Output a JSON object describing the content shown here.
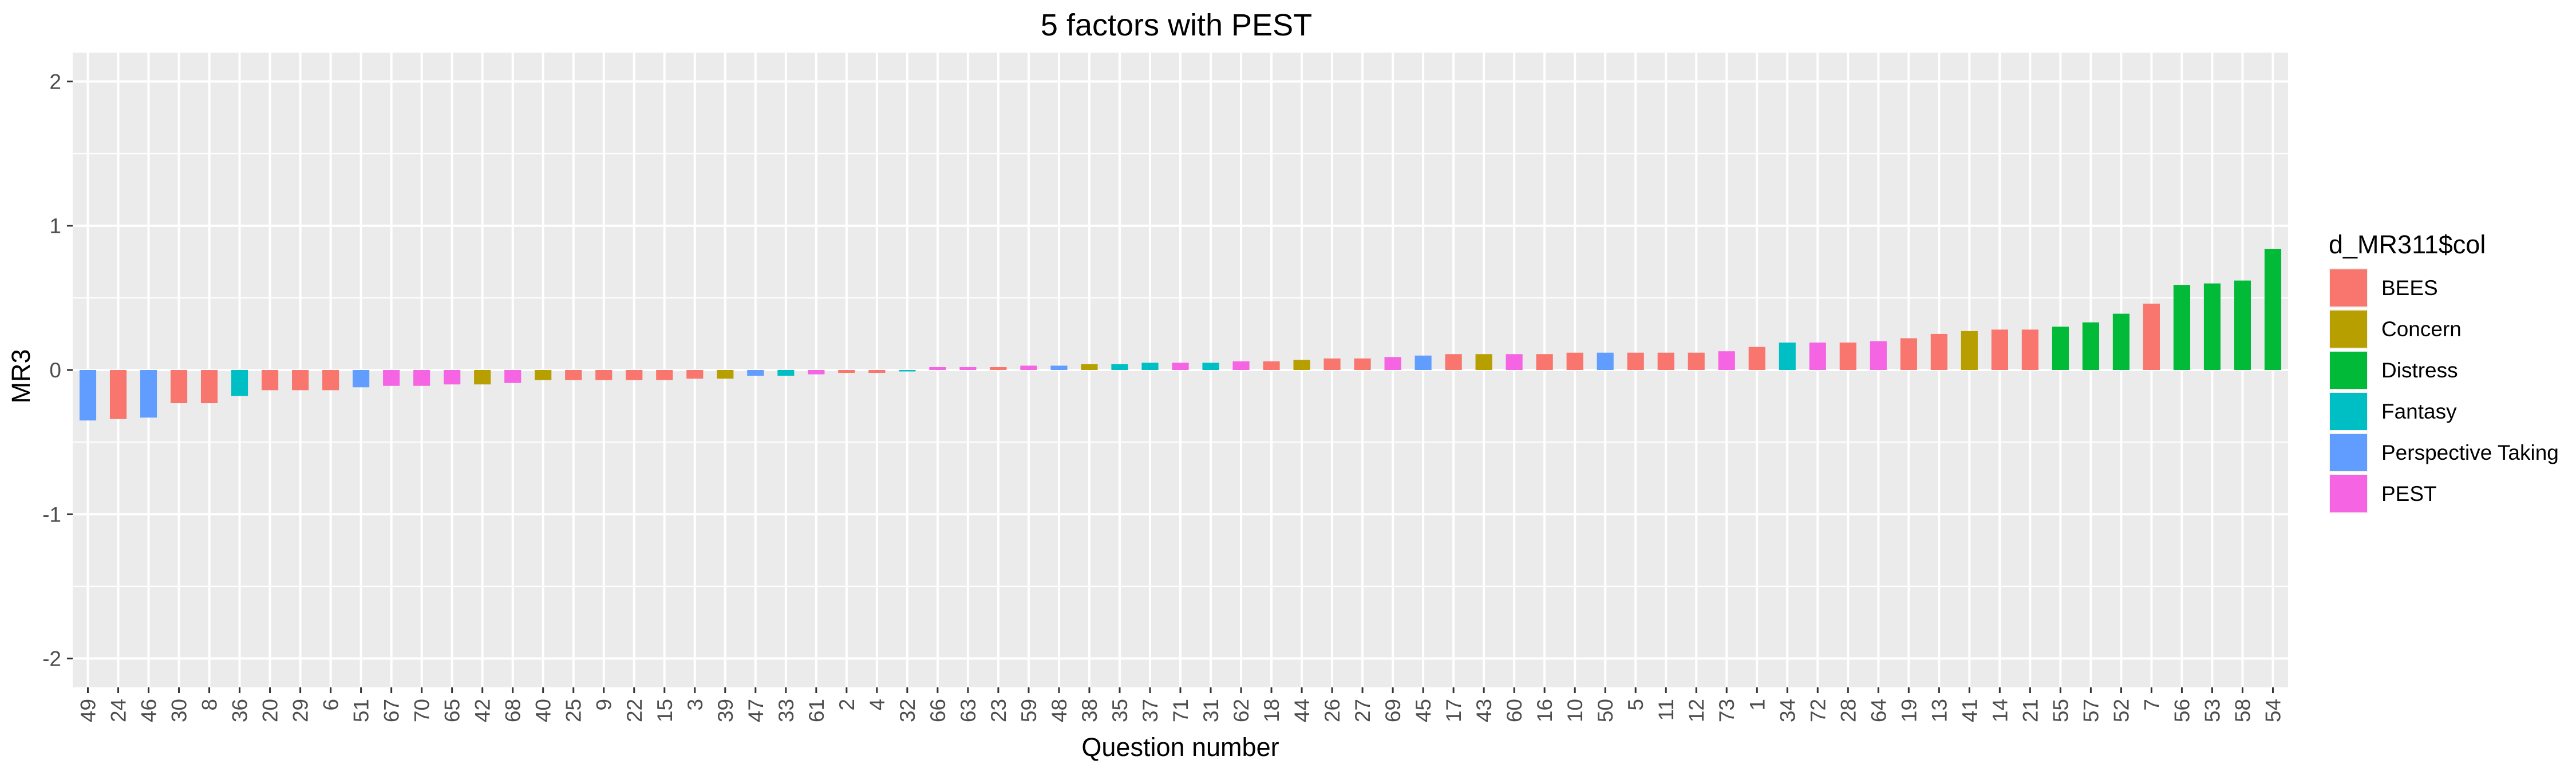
{
  "chart_data": {
    "type": "bar",
    "title": "5 factors with PEST",
    "xlabel": "Question number",
    "ylabel": "MR3",
    "ylim": [
      -2.2,
      2.2
    ],
    "yticks": [
      -2,
      -1,
      0,
      1,
      2
    ],
    "grid": true,
    "legend": {
      "title": "d_MR311$col",
      "position": "right",
      "entries": [
        {
          "name": "BEES",
          "color": "#F8766D"
        },
        {
          "name": "Concern",
          "color": "#B79F00"
        },
        {
          "name": "Distress",
          "color": "#00BA38"
        },
        {
          "name": "Fantasy",
          "color": "#00BFC4"
        },
        {
          "name": "Perspective Taking",
          "color": "#619CFF"
        },
        {
          "name": "PEST",
          "color": "#F564E3"
        }
      ]
    },
    "categories": [
      "49",
      "24",
      "46",
      "30",
      "8",
      "36",
      "20",
      "29",
      "6",
      "51",
      "67",
      "70",
      "65",
      "42",
      "68",
      "40",
      "25",
      "9",
      "22",
      "15",
      "3",
      "39",
      "47",
      "33",
      "61",
      "2",
      "4",
      "32",
      "66",
      "63",
      "23",
      "59",
      "48",
      "38",
      "35",
      "37",
      "71",
      "31",
      "62",
      "18",
      "44",
      "26",
      "27",
      "69",
      "45",
      "17",
      "43",
      "60",
      "16",
      "10",
      "50",
      "5",
      "11",
      "12",
      "73",
      "1",
      "34",
      "72",
      "28",
      "64",
      "19",
      "13",
      "41",
      "14",
      "21",
      "55",
      "57",
      "52",
      "7",
      "56",
      "53",
      "58",
      "54"
    ],
    "values": [
      -0.35,
      -0.34,
      -0.33,
      -0.23,
      -0.23,
      -0.18,
      -0.14,
      -0.14,
      -0.14,
      -0.12,
      -0.11,
      -0.11,
      -0.1,
      -0.1,
      -0.09,
      -0.07,
      -0.07,
      -0.07,
      -0.07,
      -0.07,
      -0.06,
      -0.06,
      -0.04,
      -0.04,
      -0.03,
      -0.02,
      -0.02,
      -0.01,
      0.02,
      0.02,
      0.02,
      0.03,
      0.03,
      0.04,
      0.04,
      0.05,
      0.05,
      0.05,
      0.06,
      0.06,
      0.07,
      0.08,
      0.08,
      0.09,
      0.1,
      0.11,
      0.11,
      0.11,
      0.11,
      0.12,
      0.12,
      0.12,
      0.12,
      0.12,
      0.13,
      0.16,
      0.19,
      0.19,
      0.19,
      0.2,
      0.22,
      0.25,
      0.27,
      0.28,
      0.28,
      0.3,
      0.33,
      0.39,
      0.46,
      0.59,
      0.6,
      0.62,
      0.84
    ],
    "groups": [
      "Perspective Taking",
      "BEES",
      "Perspective Taking",
      "BEES",
      "BEES",
      "Fantasy",
      "BEES",
      "BEES",
      "BEES",
      "Perspective Taking",
      "PEST",
      "PEST",
      "PEST",
      "Concern",
      "PEST",
      "Concern",
      "BEES",
      "BEES",
      "BEES",
      "BEES",
      "BEES",
      "Concern",
      "Perspective Taking",
      "Fantasy",
      "PEST",
      "BEES",
      "BEES",
      "Fantasy",
      "PEST",
      "PEST",
      "BEES",
      "PEST",
      "Perspective Taking",
      "Concern",
      "Fantasy",
      "Fantasy",
      "PEST",
      "Fantasy",
      "PEST",
      "BEES",
      "Concern",
      "BEES",
      "BEES",
      "PEST",
      "Perspective Taking",
      "BEES",
      "Concern",
      "PEST",
      "BEES",
      "BEES",
      "Perspective Taking",
      "BEES",
      "BEES",
      "BEES",
      "PEST",
      "BEES",
      "Fantasy",
      "PEST",
      "BEES",
      "PEST",
      "BEES",
      "BEES",
      "Concern",
      "BEES",
      "BEES",
      "Distress",
      "Distress",
      "Distress",
      "BEES",
      "Distress",
      "Distress",
      "Distress",
      "Distress"
    ]
  }
}
